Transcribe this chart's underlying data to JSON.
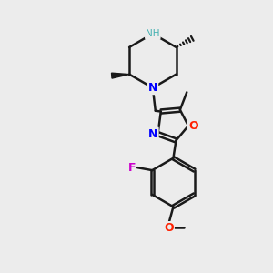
{
  "bg_color": "#ececec",
  "bond_color": "#1a1a1a",
  "N_color": "#0000ff",
  "O_color": "#ff2000",
  "F_color": "#cc00cc",
  "NH_color": "#40b0b0",
  "line_width": 1.8,
  "figsize": [
    3.0,
    3.0
  ],
  "dpi": 100,
  "xlim": [
    0,
    10
  ],
  "ylim": [
    0,
    10
  ]
}
